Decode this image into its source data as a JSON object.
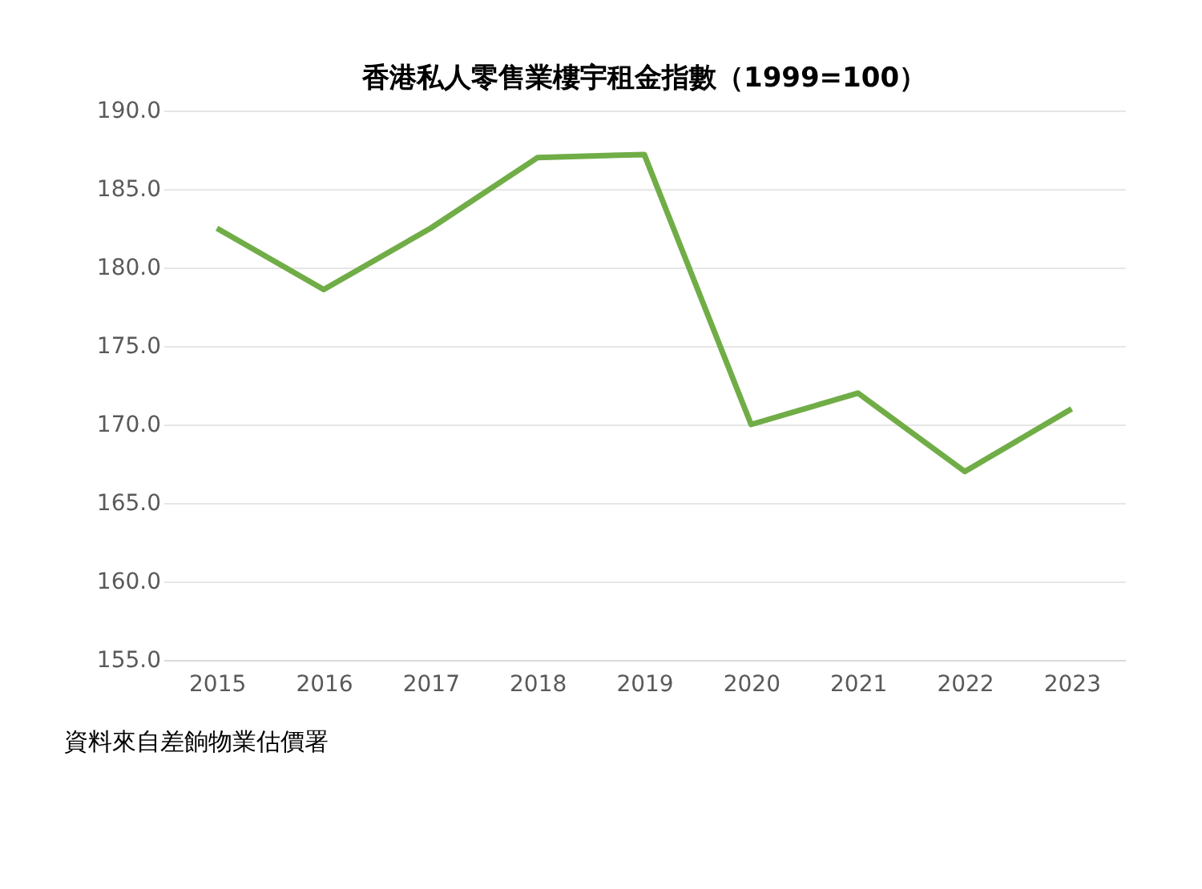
{
  "chart_data": {
    "type": "line",
    "title": "香港私人零售業樓宇租金指數（1999=100）",
    "categories": [
      "2015",
      "2016",
      "2017",
      "2018",
      "2019",
      "2020",
      "2021",
      "2022",
      "2023"
    ],
    "series": [
      {
        "color": "#70ad47",
        "values": [
          182.5,
          178.6,
          182.5,
          187.0,
          187.2,
          170.0,
          172.0,
          167.0,
          171.0
        ]
      }
    ],
    "ylim": [
      155,
      190
    ],
    "yticks": [
      {
        "value": 155,
        "label": "155.0"
      },
      {
        "value": 160,
        "label": "160.0"
      },
      {
        "value": 165,
        "label": "165.0"
      },
      {
        "value": 170,
        "label": "170.0"
      },
      {
        "value": 175,
        "label": "175.0"
      },
      {
        "value": 180,
        "label": "180.0"
      },
      {
        "value": 185,
        "label": "185.0"
      },
      {
        "value": 190,
        "label": "190.0"
      }
    ],
    "grid": "y",
    "marker": "none",
    "line_style": "solid",
    "annotations": [
      "資料來自差餉物業估價署"
    ]
  }
}
